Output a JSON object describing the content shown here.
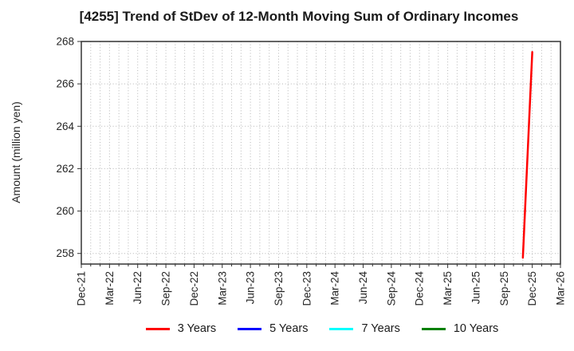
{
  "chart_data": {
    "type": "line",
    "title": "[4255]  Trend of StDev of 12-Month Moving Sum of Ordinary Incomes",
    "ylabel": "Amount (million yen)",
    "ylim": [
      257.5,
      268
    ],
    "y_ticks": [
      258,
      260,
      262,
      264,
      266,
      268
    ],
    "x_start": "Dec-21",
    "x_end": "Mar-26",
    "x_tick_labels": [
      "Dec-21",
      "Mar-22",
      "Jun-22",
      "Sep-22",
      "Dec-22",
      "Mar-23",
      "Jun-23",
      "Sep-23",
      "Dec-23",
      "Mar-24",
      "Jun-24",
      "Sep-24",
      "Dec-24",
      "Mar-25",
      "Jun-25",
      "Sep-25",
      "Dec-25",
      "Mar-26"
    ],
    "x_minor_unit": "month",
    "grid": {
      "vertical": "monthly dotted",
      "horizontal": "major dotted"
    },
    "legend_position": "bottom",
    "frame_color": "#333333",
    "grid_color": "#b5b5b5",
    "series": [
      {
        "name": "3 Years",
        "color": "#ff0000",
        "points": [
          [
            "Nov-25",
            257.8
          ],
          [
            "Dec-25",
            267.5
          ]
        ]
      },
      {
        "name": "5 Years",
        "color": "#0000ff",
        "points": []
      },
      {
        "name": "7 Years",
        "color": "#00ffff",
        "points": []
      },
      {
        "name": "10 Years",
        "color": "#008000",
        "points": []
      }
    ]
  }
}
